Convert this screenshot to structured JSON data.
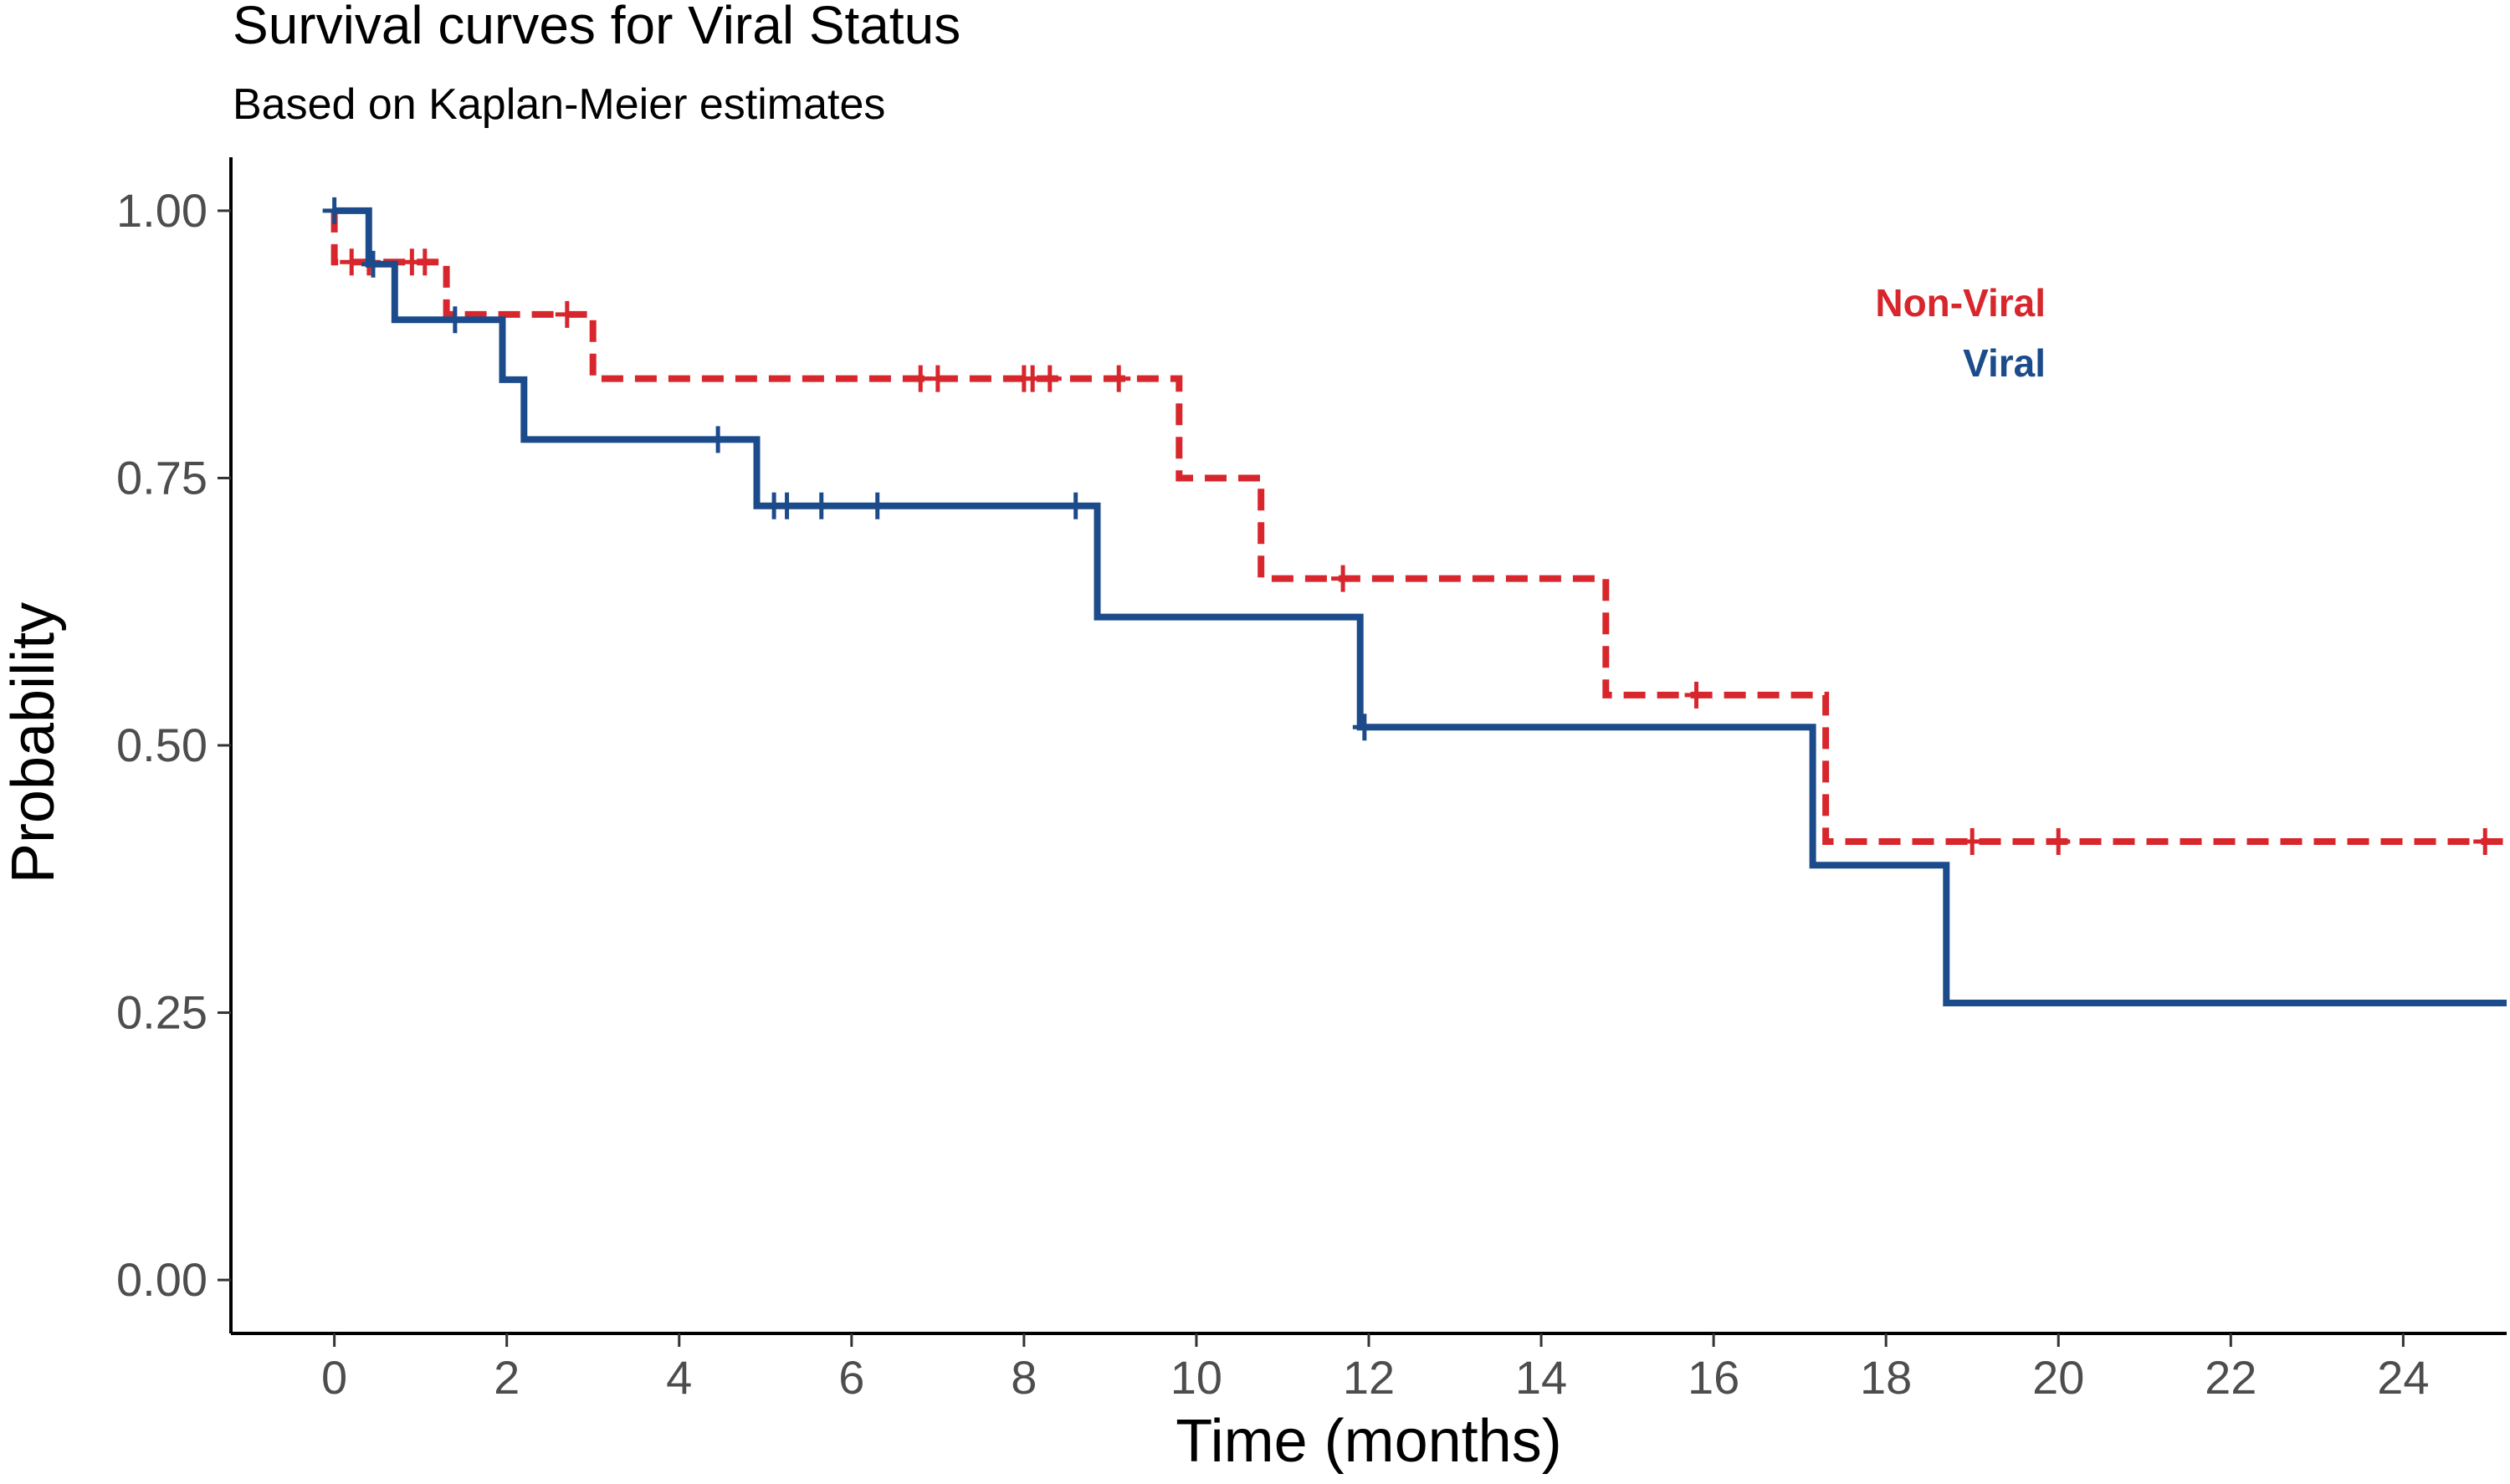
{
  "chart_data": {
    "type": "line",
    "title": "Survival curves for Viral Status",
    "subtitle": "Based on Kaplan-Meier estimates",
    "xlabel": "Time (months)",
    "ylabel": "Probability",
    "xlim": [
      -1.2,
      25.2
    ],
    "ylim": [
      -0.05,
      1.05
    ],
    "x_ticks": [
      0,
      2,
      4,
      6,
      8,
      10,
      12,
      14,
      16,
      18,
      20,
      22,
      24
    ],
    "x_tick_labels": [
      "0",
      "2",
      "4",
      "6",
      "8",
      "10",
      "12",
      "14",
      "16",
      "18",
      "20",
      "22",
      "24"
    ],
    "y_ticks": [
      0,
      0.25,
      0.5,
      0.75,
      1.0
    ],
    "y_tick_labels": [
      "0.00",
      "0.25",
      "0.50",
      "0.75",
      "1.00"
    ],
    "grid": false,
    "legend_position": "top-right",
    "series": [
      {
        "name": "Non-Viral",
        "color": "#d7262c",
        "line_style": "dashed",
        "steps": [
          [
            0.0,
            1.0
          ],
          [
            0.0,
            0.952
          ],
          [
            1.3,
            0.903
          ],
          [
            3.0,
            0.843
          ],
          [
            9.8,
            0.75
          ],
          [
            10.75,
            0.656
          ],
          [
            14.75,
            0.547
          ],
          [
            17.3,
            0.41
          ],
          [
            25.2,
            0.41
          ]
        ],
        "censored": [
          [
            0.2,
            0.952
          ],
          [
            0.4,
            0.952
          ],
          [
            0.9,
            0.952
          ],
          [
            1.05,
            0.952
          ],
          [
            2.7,
            0.903
          ],
          [
            6.8,
            0.843
          ],
          [
            7.0,
            0.843
          ],
          [
            8.0,
            0.843
          ],
          [
            8.1,
            0.843
          ],
          [
            8.3,
            0.843
          ],
          [
            9.1,
            0.843
          ],
          [
            11.7,
            0.656
          ],
          [
            15.8,
            0.547
          ],
          [
            19.0,
            0.41
          ],
          [
            20.0,
            0.41
          ],
          [
            24.95,
            0.41
          ]
        ]
      },
      {
        "name": "Viral",
        "color": "#1c4b8b",
        "line_style": "solid",
        "steps": [
          [
            0.0,
            1.0
          ],
          [
            0.4,
            0.95
          ],
          [
            0.7,
            0.898
          ],
          [
            1.95,
            0.842
          ],
          [
            2.2,
            0.786
          ],
          [
            4.9,
            0.724
          ],
          [
            8.85,
            0.62
          ],
          [
            11.9,
            0.517
          ],
          [
            17.15,
            0.388
          ],
          [
            18.7,
            0.259
          ],
          [
            25.2,
            0.259
          ]
        ],
        "censored": [
          [
            0.0,
            1.0
          ],
          [
            0.45,
            0.95
          ],
          [
            1.4,
            0.898
          ],
          [
            4.45,
            0.786
          ],
          [
            5.1,
            0.724
          ],
          [
            5.25,
            0.724
          ],
          [
            5.65,
            0.724
          ],
          [
            6.3,
            0.724
          ],
          [
            8.6,
            0.724
          ],
          [
            11.95,
            0.517
          ]
        ]
      }
    ]
  }
}
